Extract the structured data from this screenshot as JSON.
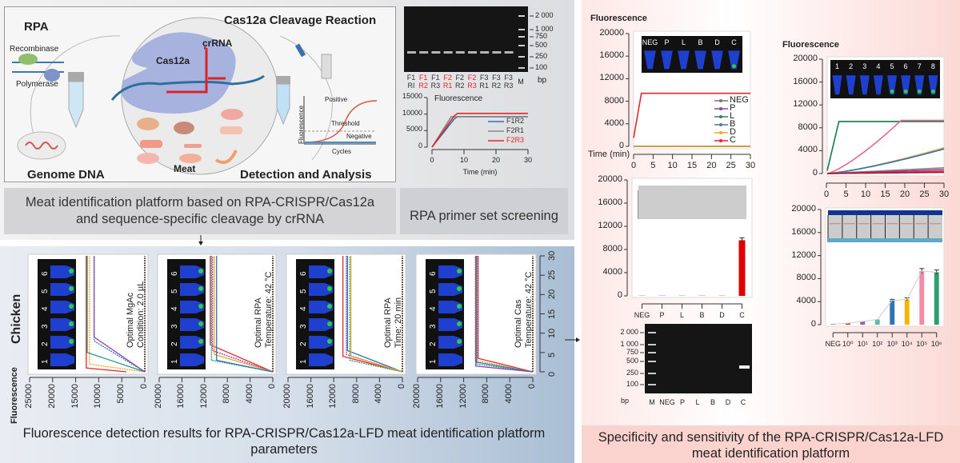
{
  "overview": {
    "caption_left_line1": "Meat identification platform based on RPA-CRISPR/Cas12a",
    "caption_left_line2": "and sequence-specific cleavage by crRNA",
    "caption_mid": "RPA primer set screening",
    "caption_bottom_line1": "Fluorescence detection results for RPA-CRISPR/Cas12a-LFD meat identification platform",
    "caption_bottom_line2": "parameters",
    "caption_right_line1": "Specificity and sensitivity of the RPA-CRISPR/Cas12a-LFD",
    "caption_right_line2": "meat identification platform"
  },
  "diagram": {
    "rpa": "RPA",
    "recombinase": "Recombinase",
    "polymerase": "Polymerase",
    "genome_dna": "Genome DNA",
    "cleavage": "Cas12a Cleavage Reaction",
    "crrna": "crRNA",
    "cas12a": "Cas12a",
    "meat": "Meat",
    "detection": "Detection and Analysis",
    "positive": "Positive",
    "threshold": "Threshold",
    "negative": "Negative",
    "fluorescence": "Fluorescence",
    "cycles": "Cycles"
  },
  "colors": {
    "purple": "#8e44ad",
    "blue": "#2e75b6",
    "teal": "#1f9a82",
    "orange": "#f5a623",
    "red": "#e8262a",
    "brown": "#6b5a50",
    "gray": "#777777",
    "pink": "#f06292",
    "darkgreen": "#127a4a"
  },
  "chart_data": [
    {
      "id": "primer_gel",
      "type": "gel",
      "ladder": [
        "2 000",
        "1 000",
        "750",
        "500",
        "250",
        "100"
      ],
      "unit": "bp",
      "lanes": [
        [
          "F1",
          "RI"
        ],
        [
          "F1",
          "R2"
        ],
        [
          "F1",
          "R3"
        ],
        [
          "F2",
          "R1"
        ],
        [
          "F2",
          "R2"
        ],
        [
          "F2",
          "R3"
        ],
        [
          "F3",
          "R1"
        ],
        [
          "F3",
          "R2"
        ],
        [
          "F3",
          "R3"
        ]
      ],
      "highlighted_lanes": [
        1,
        3,
        5
      ],
      "marker": "M"
    },
    {
      "id": "primer_fluorescence",
      "type": "line",
      "title": "Fluorescence",
      "xlabel": "Time (min)",
      "xlim": [
        0,
        30
      ],
      "ylim": [
        0,
        15000
      ],
      "xticks": [
        "0",
        "10",
        "20",
        "30"
      ],
      "yticks": [
        "15000",
        "10000",
        "5000",
        "0"
      ],
      "legend": "right",
      "series": [
        {
          "name": "F1R2",
          "color": "#2e75b6",
          "plateau": 9200,
          "t_plateau": 7.5
        },
        {
          "name": "F2R1",
          "color": "#888888",
          "plateau": 9200,
          "t_plateau": 6
        },
        {
          "name": "F2R3",
          "color": "#e8262a",
          "plateau": 10200,
          "t_plateau": 7.5
        }
      ]
    },
    {
      "id": "param_charts",
      "type": "line",
      "orientation": "rotated",
      "species": "Chicken",
      "ylabel": "Fluorescence",
      "time_ticks": [
        "0",
        "5",
        "10",
        "15",
        "20",
        "25",
        "30"
      ],
      "tlim": [
        0,
        30
      ],
      "panels": [
        {
          "note1": "Optimal MgAc",
          "note2": "Condition: 2.0 µL",
          "flim": [
            0,
            25000
          ],
          "fticks": [
            "25000",
            "20000",
            "15000",
            "10000",
            "5000",
            "0"
          ],
          "tubes": [
            "1",
            "2",
            "3",
            "4",
            "5",
            "6"
          ],
          "series": [
            {
              "color": "#e8262a",
              "plateau": 12700,
              "t_plateau": 1,
              "start": 4000
            },
            {
              "color": "#f5a623",
              "plateau": 12000,
              "t_plateau": 2,
              "start": 0
            },
            {
              "color": "#1f9a82",
              "plateau": 12500,
              "t_plateau": 5,
              "start": 0
            },
            {
              "color": "#2e75b6",
              "plateau": 11000,
              "t_plateau": 8,
              "start": 0
            },
            {
              "color": "#8e44ad",
              "plateau": 11000,
              "t_plateau": 9,
              "start": 0
            },
            {
              "color": "#6b5a50",
              "plateau": 0,
              "t_plateau": 0,
              "start": 0
            }
          ]
        },
        {
          "note1": "Optimal RPA",
          "note2": "Temperature: 42 °C",
          "flim": [
            0,
            20000
          ],
          "fticks": [
            "20000",
            "16000",
            "12000",
            "8000",
            "4000",
            "0"
          ],
          "tubes": [
            "1",
            "2",
            "3",
            "4",
            "5",
            "6"
          ],
          "series": [
            {
              "color": "#e8262a",
              "plateau": 11000,
              "t_plateau": 7,
              "start": 0
            },
            {
              "color": "#8e44ad",
              "plateau": 10600,
              "t_plateau": 5.5,
              "start": 0
            },
            {
              "color": "#f5a623",
              "plateau": 10300,
              "t_plateau": 4.5,
              "start": 0
            },
            {
              "color": "#1f9a82",
              "plateau": 10800,
              "t_plateau": 3,
              "start": 0
            },
            {
              "color": "#2e75b6",
              "plateau": 9900,
              "t_plateau": 3,
              "start": 0
            },
            {
              "color": "#6b5a50",
              "plateau": 0,
              "t_plateau": 0,
              "start": 0
            }
          ]
        },
        {
          "note1": "Optimal RPA",
          "note2": "Time: 20 min",
          "flim": [
            0,
            20000
          ],
          "fticks": [
            "20000",
            "16000",
            "12000",
            "8000",
            "4000",
            "0"
          ],
          "tubes": [
            "1",
            "2",
            "3",
            "4",
            "5",
            "6"
          ],
          "series": [
            {
              "color": "#e8262a",
              "plateau": 10400,
              "t_plateau": 4,
              "start": 0
            },
            {
              "color": "#8e44ad",
              "plateau": 9800,
              "t_plateau": 4.5,
              "start": 0
            },
            {
              "color": "#2e75b6",
              "plateau": 9600,
              "t_plateau": 5.5,
              "start": 0
            },
            {
              "color": "#1f9a82",
              "plateau": 9200,
              "t_plateau": 3,
              "start": 0
            },
            {
              "color": "#f5a623",
              "plateau": 9000,
              "t_plateau": 4,
              "start": 0
            },
            {
              "color": "#6b5a50",
              "plateau": 0,
              "t_plateau": 0,
              "start": 0
            }
          ]
        },
        {
          "note1": "Optimal Cas",
          "note2": "Temperature: 42 °C",
          "flim": [
            0,
            20000
          ],
          "fticks": [
            "20000",
            "16000",
            "12000",
            "8000",
            "4000",
            "0"
          ],
          "tubes": [
            "1",
            "2",
            "3",
            "4",
            "5",
            "6"
          ],
          "series": [
            {
              "color": "#e8262a",
              "plateau": 9500,
              "t_plateau": 3.5,
              "start": 0
            },
            {
              "color": "#f5a623",
              "plateau": 10000,
              "t_plateau": 3,
              "start": 0
            },
            {
              "color": "#2e75b6",
              "plateau": 9800,
              "t_plateau": 2.5,
              "start": 0
            },
            {
              "color": "#1f9a82",
              "plateau": 9700,
              "t_plateau": 2,
              "start": 0
            },
            {
              "color": "#8e44ad",
              "plateau": 9900,
              "t_plateau": 1.5,
              "start": 0
            },
            {
              "color": "#6b5a50",
              "plateau": 0,
              "t_plateau": 0,
              "start": 0
            }
          ]
        }
      ]
    },
    {
      "id": "specificity_fluorescence",
      "type": "line",
      "title": "Fluorescence",
      "xlabel": "Time (min)",
      "xlim": [
        0,
        30
      ],
      "ylim": [
        0,
        20000
      ],
      "xticks": [
        "0",
        "5",
        "10",
        "15",
        "20",
        "25",
        "30"
      ],
      "yticks": [
        "20000",
        "16000",
        "12000",
        "8000",
        "4000",
        "0"
      ],
      "tubes": [
        "NEG",
        "P",
        "L",
        "B",
        "D",
        "C"
      ],
      "legend": "right",
      "series": [
        {
          "name": "NEG",
          "color": "#777777",
          "plateau": 0,
          "t_plateau": 0
        },
        {
          "name": "P",
          "color": "#8e44ad",
          "plateau": 0,
          "t_plateau": 0
        },
        {
          "name": "L",
          "color": "#3f7a6a",
          "plateau": 0,
          "t_plateau": 0
        },
        {
          "name": "B",
          "color": "#4a7ab0",
          "plateau": 0,
          "t_plateau": 0
        },
        {
          "name": "D",
          "color": "#f5a623",
          "plateau": 0,
          "t_plateau": 0
        },
        {
          "name": "C",
          "color": "#e8262a",
          "plateau": 9400,
          "t_plateau": 2,
          "start": 1500
        }
      ]
    },
    {
      "id": "specificity_bar",
      "type": "bar",
      "categories": [
        "NEG",
        "P",
        "L",
        "B",
        "D",
        "C"
      ],
      "values": [
        50,
        50,
        50,
        50,
        80,
        9600
      ],
      "errors": [
        0,
        0,
        0,
        0,
        0,
        400
      ],
      "colors": [
        "#777777",
        "#8e44ad",
        "#3f9a8a",
        "#4a7ab0",
        "#f5a623",
        "#e00000"
      ],
      "ylim": [
        0,
        20000
      ],
      "yticks": [
        "20000",
        "16000",
        "12000",
        "8000",
        "4000",
        "0"
      ]
    },
    {
      "id": "specificity_gel",
      "type": "gel",
      "ladder": [
        "2 000",
        "1 000",
        "750",
        "500",
        "250",
        "100"
      ],
      "unit": "bp",
      "lanes": [
        "M",
        "NEG",
        "P",
        "L",
        "B",
        "D",
        "C"
      ],
      "band_lane": "C"
    },
    {
      "id": "sensitivity_fluorescence",
      "type": "line",
      "title": "Fluorescence",
      "xlim": [
        0,
        30
      ],
      "ylim": [
        0,
        20000
      ],
      "xticks": [
        "0",
        "5",
        "10",
        "15",
        "20",
        "25",
        "30"
      ],
      "yticks": [
        "20000",
        "16000",
        "12000",
        "8000",
        "4000",
        "0"
      ],
      "tubes": [
        "1",
        "2",
        "3",
        "4",
        "5",
        "6",
        "7",
        "8"
      ],
      "series": [
        {
          "color": "#127a4a",
          "plateau": 9100,
          "t_plateau": 3,
          "start": 500
        },
        {
          "color": "#f06292",
          "plateau": 9300,
          "t_plateau": 19,
          "start": 0,
          "curve": true
        },
        {
          "color": "#f5a623",
          "plateau": 4500,
          "t_plateau": 30,
          "start": 0,
          "curve": true
        },
        {
          "color": "#2e75b6",
          "plateau": 4300,
          "t_plateau": 30,
          "start": 0,
          "curve": true
        },
        {
          "color": "#888888",
          "plateau": 1000,
          "t_plateau": 30,
          "start": 0
        },
        {
          "color": "#8e44ad",
          "plateau": 700,
          "t_plateau": 30,
          "start": 0
        },
        {
          "color": "#e8262a",
          "plateau": 400,
          "t_plateau": 30,
          "start": 0
        },
        {
          "color": "#a0202a",
          "plateau": 200,
          "t_plateau": 30,
          "start": 0
        }
      ]
    },
    {
      "id": "sensitivity_bar",
      "type": "bar",
      "categories": [
        "NEG",
        "10⁰",
        "10¹",
        "10²",
        "10³",
        "10⁴",
        "10⁵",
        "10⁶"
      ],
      "values": [
        100,
        250,
        550,
        900,
        4200,
        4400,
        9300,
        9100
      ],
      "errors": [
        0,
        0,
        0,
        0,
        200,
        250,
        450,
        400
      ],
      "colors": [
        "#777777",
        "#e8262a",
        "#9b59b6",
        "#5bbfa8",
        "#2e75b6",
        "#f5b400",
        "#f48aa5",
        "#2e9e6a"
      ],
      "trendline": true,
      "ylim": [
        0,
        20000
      ],
      "yticks": [
        "20000",
        "16000",
        "12000",
        "8000",
        "4000",
        "0"
      ]
    }
  ]
}
